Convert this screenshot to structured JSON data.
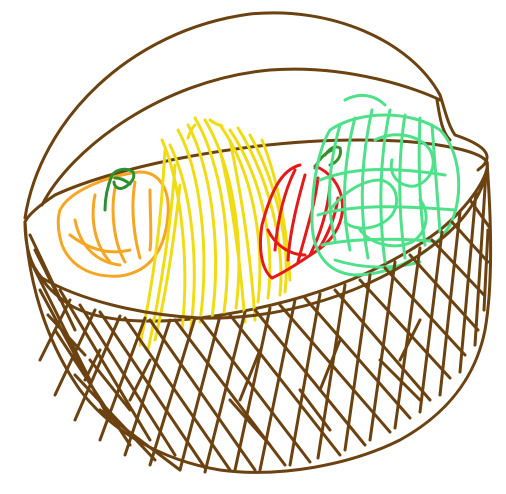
{
  "drawing": {
    "subject": "fruit-basket-sketch",
    "colors": {
      "basket": "#6b4210",
      "orange": "#f5a623",
      "orange_leaf": "#2f8f2f",
      "banana": "#f0dc14",
      "banana_alt": "#e6d21e",
      "apple": "#e31a1a",
      "apple_stem": "#3a8f2a",
      "melon": "#4fe08a",
      "melon_alt": "#35c46f",
      "background": "#ffffff"
    },
    "items": [
      {
        "name": "basket",
        "icon": "basket-icon"
      },
      {
        "name": "orange",
        "icon": "orange-icon"
      },
      {
        "name": "bananas",
        "icon": "banana-icon"
      },
      {
        "name": "apple",
        "icon": "apple-icon"
      },
      {
        "name": "melon",
        "icon": "melon-icon"
      }
    ]
  }
}
